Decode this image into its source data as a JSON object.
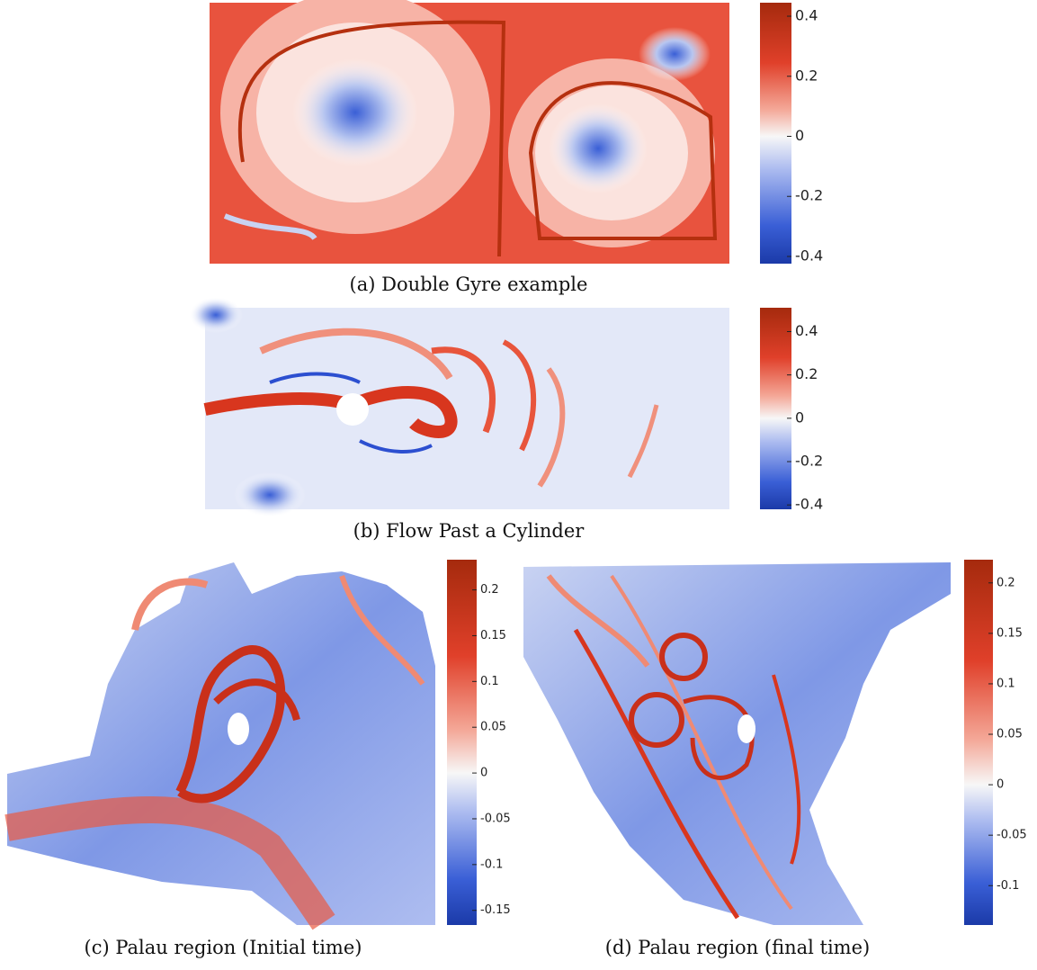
{
  "chart_data": [
    {
      "type": "heatmap",
      "title": "(a) Double Gyre example",
      "clim": [
        -0.424,
        0.445
      ],
      "cticks": [
        0.4,
        0.2,
        0,
        -0.2,
        -0.4
      ]
    },
    {
      "type": "heatmap",
      "title": "(b) Flow Past a Cylinder",
      "clim": [
        -0.42,
        0.51
      ],
      "cticks": [
        0.4,
        0.2,
        0,
        -0.2,
        -0.4
      ]
    },
    {
      "type": "heatmap",
      "title": "(c) Palau region (Initial time)",
      "clim": [
        -0.166,
        0.233
      ],
      "cticks": [
        0.2,
        0.15,
        0.1,
        0.05,
        0,
        -0.05,
        -0.1,
        -0.15
      ]
    },
    {
      "type": "heatmap",
      "title": "(d) Palau region (final time)",
      "clim": [
        -0.139,
        0.223
      ],
      "cticks": [
        0.2,
        0.15,
        0.1,
        0.05,
        0,
        -0.05,
        -0.1
      ]
    }
  ]
}
